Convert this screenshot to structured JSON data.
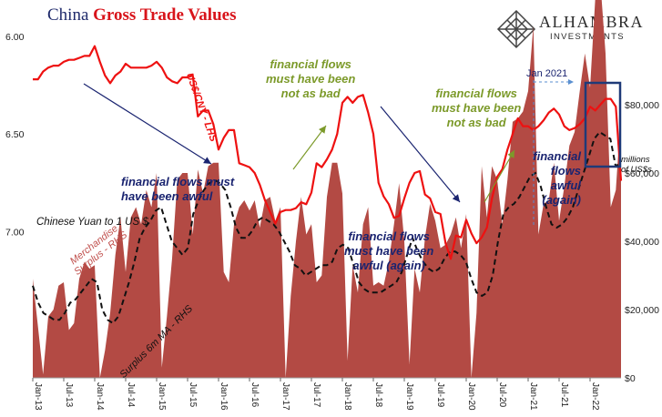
{
  "title": {
    "part1": "China",
    "part2": "Gross Trade Values"
  },
  "logo": {
    "name": "ALHAMBRA",
    "sub": "INVESTMENTS"
  },
  "annotations": {
    "usdcny_label": "US$/CNY - LHS",
    "yuan_label": "Chinese Yuan to 1 US $",
    "merch_label1": "Merchandise",
    "merch_label2": "Surplus - RHS",
    "ma_label": "Surplus 6m MA - RHS",
    "jan2021": "Jan 2021",
    "units1": "millions",
    "units2": "of US$s",
    "ff_awful": [
      "financial flows must",
      "have been awful"
    ],
    "ff_notbad": [
      "financial flows",
      "must have been",
      "not as bad"
    ],
    "ff_awful_again": [
      "financial flows",
      "must have been",
      "awful (again)"
    ],
    "ff_notbad2": [
      "financial flows",
      "must have been",
      "not as bad"
    ],
    "ff_awful_again2": [
      "financial",
      "flows",
      "awful",
      "(again)"
    ]
  },
  "colors": {
    "fx_line": "#ee1111",
    "surplus_area": "#b34a44",
    "ma_line": "#111111",
    "navy": "#1a2470",
    "olive": "#7c9a2a"
  },
  "chart_data": {
    "type": "line",
    "x_labels": [
      "Jan-13",
      "Jul-13",
      "Jan-14",
      "Jul-14",
      "Jan-15",
      "Jul-15",
      "Jan-16",
      "Jul-16",
      "Jan-17",
      "Jul-17",
      "Jan-18",
      "Jul-18",
      "Jan-19",
      "Jul-19",
      "Jan-20",
      "Jul-20",
      "Jan-21",
      "Jul-21",
      "Jan-22"
    ],
    "left_axis": {
      "label": "Chinese Yuan to 1 US $",
      "ticks": [
        "6.00",
        "6.50",
        "7.00"
      ],
      "range": [
        6.0,
        7.75
      ],
      "inverted": true
    },
    "right_axis": {
      "label": "millions of US$s",
      "ticks": [
        "$0",
        "$20,000",
        "$40,000",
        "$60,000",
        "$80,000"
      ],
      "range": [
        0,
        100000
      ]
    },
    "series": [
      {
        "name": "US$/CNY - LHS",
        "axis": "left",
        "type": "line",
        "values": [
          6.22,
          6.22,
          6.18,
          6.16,
          6.15,
          6.15,
          6.13,
          6.12,
          6.12,
          6.11,
          6.1,
          6.1,
          6.05,
          6.13,
          6.2,
          6.24,
          6.2,
          6.18,
          6.14,
          6.16,
          6.16,
          6.16,
          6.16,
          6.15,
          6.13,
          6.16,
          6.21,
          6.23,
          6.24,
          6.21,
          6.21,
          6.2,
          6.41,
          6.38,
          6.38,
          6.45,
          6.58,
          6.52,
          6.48,
          6.48,
          6.65,
          6.66,
          6.67,
          6.7,
          6.76,
          6.84,
          6.9,
          6.96,
          6.9,
          6.89,
          6.89,
          6.88,
          6.85,
          6.86,
          6.8,
          6.65,
          6.67,
          6.63,
          6.58,
          6.5,
          6.34,
          6.31,
          6.34,
          6.31,
          6.3,
          6.39,
          6.5,
          6.75,
          6.82,
          6.86,
          6.93,
          6.92,
          6.83,
          6.75,
          6.7,
          6.69,
          6.81,
          6.83,
          6.9,
          6.91,
          7.06,
          7.14,
          7.02,
          7.03,
          6.94,
          7.01,
          7.06,
          7.03,
          6.98,
          6.83,
          6.72,
          6.68,
          6.58,
          6.5,
          6.42,
          6.46,
          6.46,
          6.48,
          6.46,
          6.43,
          6.39,
          6.37,
          6.4,
          6.46,
          6.48,
          6.47,
          6.45,
          6.42,
          6.36,
          6.38,
          6.35,
          6.32,
          6.32,
          6.36,
          6.74
        ]
      },
      {
        "name": "Merchandise Surplus - RHS",
        "axis": "right",
        "type": "area",
        "values": [
          29000,
          15000,
          1000,
          18000,
          20000,
          27000,
          28000,
          14000,
          16000,
          29000,
          34000,
          32000,
          33000,
          -1000,
          8000,
          19000,
          36000,
          47000,
          31000,
          47000,
          50000,
          45000,
          55000,
          50000,
          60000,
          3000,
          18000,
          35000,
          58000,
          60000,
          60000,
          42000,
          61000,
          54000,
          62000,
          63000,
          63000,
          31000,
          28000,
          45000,
          50000,
          52000,
          49000,
          52000,
          44000,
          52000,
          53000,
          46000,
          50000,
          -9000,
          24000,
          40000,
          53000,
          42000,
          45000,
          28000,
          30000,
          53000,
          63000,
          63000,
          54000,
          5000,
          33000,
          25000,
          45000,
          50000,
          27000,
          28000,
          27000,
          34000,
          45000,
          57000,
          40000,
          4000,
          32000,
          25000,
          41000,
          51000,
          46000,
          38000,
          39000,
          42000,
          47000,
          38000,
          48000,
          -7000,
          19000,
          62000,
          47000,
          62000,
          58000,
          45000,
          58000,
          75000,
          76000,
          78000,
          84000,
          103000,
          42000,
          51000,
          52000,
          63000,
          46000,
          56000,
          68000,
          72000,
          84000,
          95000,
          85000,
          111000,
          116000,
          95000,
          50000,
          55000,
          78000
        ]
      },
      {
        "name": "Surplus 6m MA - RHS",
        "axis": "right",
        "type": "line",
        "values": [
          27000,
          22000,
          19000,
          18000,
          17000,
          17000,
          19000,
          22000,
          23000,
          25000,
          27000,
          29000,
          28000,
          20000,
          17000,
          16000,
          18000,
          23000,
          28000,
          34000,
          41000,
          44000,
          46000,
          49000,
          50000,
          45000,
          40000,
          38000,
          36000,
          38000,
          48000,
          52000,
          55000,
          57000,
          58000,
          57000,
          55000,
          50000,
          44000,
          41000,
          41000,
          43000,
          46000,
          47000,
          46000,
          45000,
          43000,
          40000,
          37000,
          33000,
          32000,
          30000,
          31000,
          32000,
          33000,
          33000,
          34000,
          38000,
          39000,
          38000,
          33000,
          28000,
          26000,
          25000,
          25000,
          25000,
          26000,
          27000,
          28000,
          31000,
          36000,
          41000,
          37000,
          34000,
          32000,
          31000,
          32000,
          35000,
          37000,
          37000,
          36000,
          34000,
          29000,
          25000,
          24000,
          25000,
          30000,
          40000,
          48000,
          50000,
          51000,
          53000,
          56000,
          59000,
          60000,
          56000,
          50000,
          45000,
          44000,
          45000,
          47000,
          50000,
          55000,
          60000,
          65000,
          70000,
          72000,
          71000,
          70000,
          62000,
          63000
        ]
      }
    ]
  }
}
